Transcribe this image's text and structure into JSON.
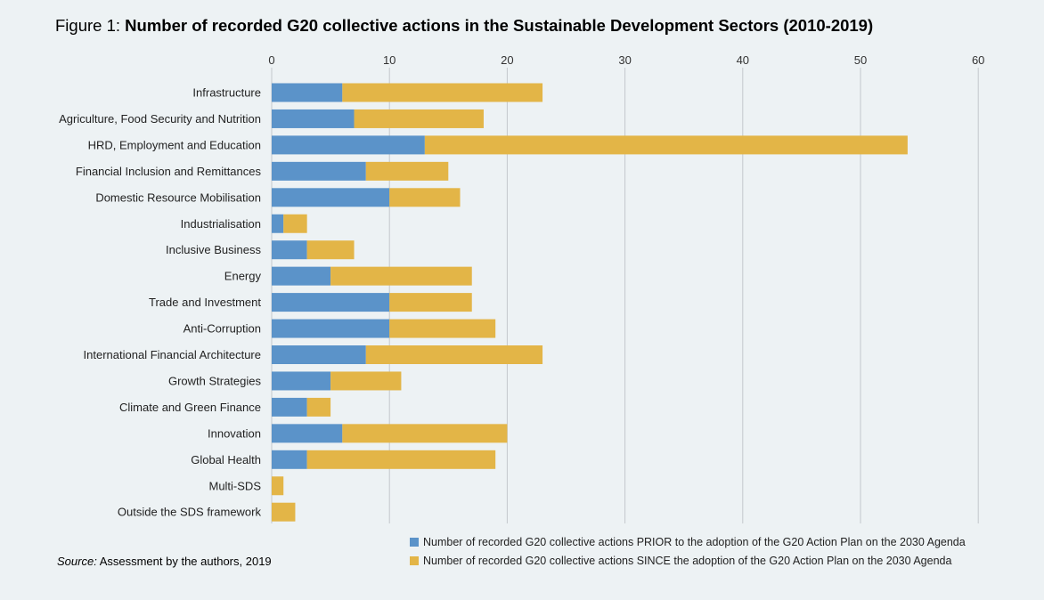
{
  "figure": {
    "label": "Figure 1: ",
    "title": "Number of recorded G20 collective actions in the Sustainable Development Sectors (2010-2019)"
  },
  "source": {
    "label": "Source:",
    "text": " Assessment by the authors, 2019"
  },
  "chart_data": {
    "type": "bar",
    "orientation": "horizontal",
    "stacked": true,
    "title": "Number of recorded G20 collective actions in the Sustainable Development Sectors (2010-2019)",
    "xlabel": "",
    "ylabel": "",
    "xlim": [
      0,
      60
    ],
    "ticks": [
      0,
      10,
      20,
      30,
      40,
      50,
      60
    ],
    "grid": "vertical",
    "axis_position": "top",
    "legend_position": "bottom-right",
    "categories": [
      "Infrastructure",
      "Agriculture, Food Security and Nutrition",
      "HRD, Employment and Education",
      "Financial Inclusion and Remittances",
      "Domestic Resource Mobilisation",
      "Industrialisation",
      "Inclusive Business",
      "Energy",
      "Trade and Investment",
      "Anti-Corruption",
      "International Financial Architecture",
      "Growth Strategies",
      "Climate and Green Finance",
      "Innovation",
      "Global Health",
      "Multi-SDS",
      "Outside the SDS framework"
    ],
    "series": [
      {
        "name": "Number of recorded G20 collective actions PRIOR to the adoption of the G20 Action Plan on the 2030 Agenda",
        "color": "#5b93c9",
        "values": [
          6,
          7,
          13,
          8,
          10,
          1,
          3,
          5,
          10,
          10,
          8,
          5,
          3,
          6,
          3,
          0,
          0
        ]
      },
      {
        "name": "Number of recorded G20 collective actions SINCE the adoption of the G20 Action Plan on the 2030 Agenda",
        "color": "#e3b547",
        "values": [
          17,
          11,
          41,
          7,
          6,
          2,
          4,
          12,
          7,
          9,
          15,
          6,
          2,
          14,
          16,
          1,
          2
        ]
      }
    ]
  }
}
